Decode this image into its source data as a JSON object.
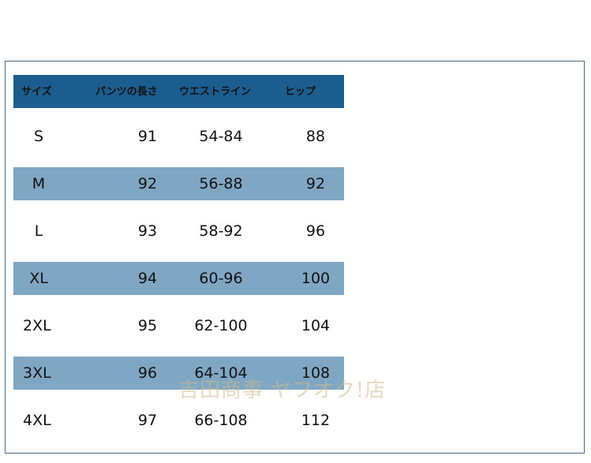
{
  "table": {
    "headers": [
      "サイズ",
      "パンツの長さ",
      "ウエストライン",
      "ヒップ"
    ],
    "rows": [
      {
        "size": "S",
        "length": "91",
        "waist": "54-84",
        "hip": "88"
      },
      {
        "size": "M",
        "length": "92",
        "waist": "56-88",
        "hip": "92"
      },
      {
        "size": "L",
        "length": "93",
        "waist": "58-92",
        "hip": "96"
      },
      {
        "size": "XL",
        "length": "94",
        "waist": "60-96",
        "hip": "100"
      },
      {
        "size": "2XL",
        "length": "95",
        "waist": "62-100",
        "hip": "104"
      },
      {
        "size": "3XL",
        "length": "96",
        "waist": "64-104",
        "hip": "108"
      },
      {
        "size": "4XL",
        "length": "97",
        "waist": "66-108",
        "hip": "112"
      }
    ]
  },
  "watermark": "吉田商事 ヤフオク!店",
  "colors": {
    "header_bg": "#1b5d8f",
    "stripe_bg": "#7fa7c4",
    "frame_border": "#4b6d82"
  }
}
